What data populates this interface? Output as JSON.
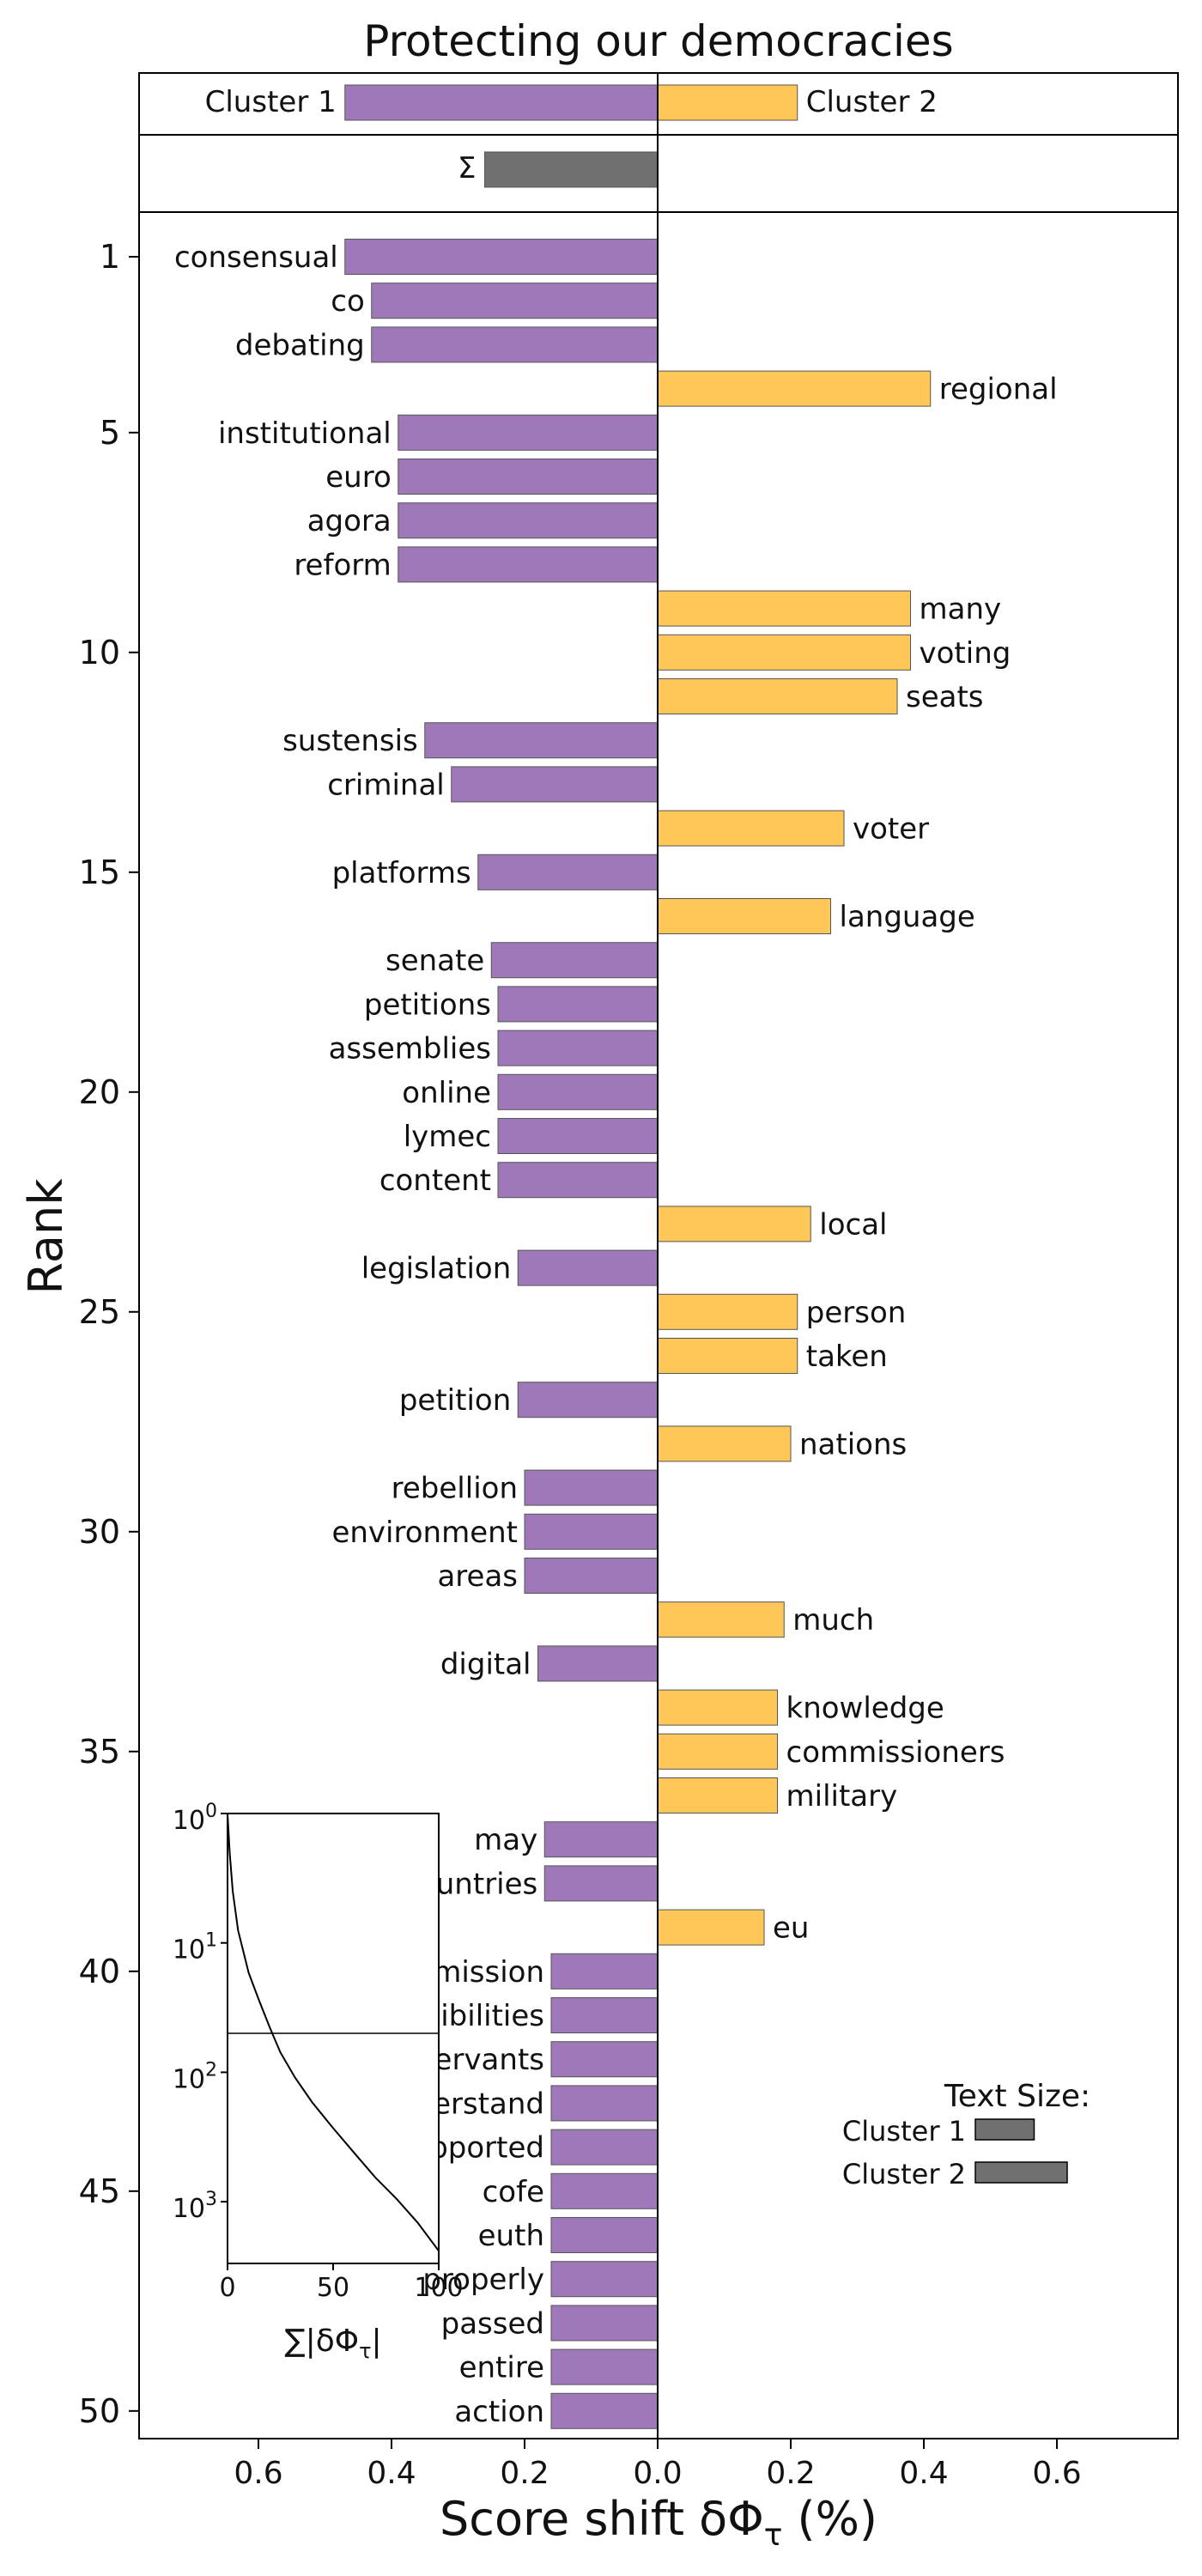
{
  "chart_data": {
    "type": "bar",
    "title": "Protecting our democracies",
    "xlabel": "Score shift δΦ_τ (%)",
    "ylabel": "Rank",
    "xlim": [
      -0.78,
      0.78
    ],
    "x_tick_values": [
      -0.6,
      -0.4,
      -0.2,
      0,
      0.2,
      0.4,
      0.6
    ],
    "x_tick_labels": [
      "0.6",
      "0.4",
      "0.2",
      "0.0",
      "0.2",
      "0.4",
      "0.6"
    ],
    "y_tick_values": [
      1,
      5,
      10,
      15,
      20,
      25,
      30,
      35,
      40,
      45,
      50
    ],
    "colors": {
      "cluster1": "#9E78B8",
      "cluster2": "#FFC757",
      "sum": "#707070"
    },
    "summary": {
      "cluster1_label": "Cluster 1",
      "cluster1_value": -0.47,
      "cluster2_label": "Cluster 2",
      "cluster2_value": 0.21,
      "sum_label": "Σ",
      "sum_value": -0.26
    },
    "words": [
      {
        "rank": 1,
        "word": "consensual",
        "value": -0.47
      },
      {
        "rank": 2,
        "word": "co",
        "value": -0.43
      },
      {
        "rank": 3,
        "word": "debating",
        "value": -0.43
      },
      {
        "rank": 4,
        "word": "regional",
        "value": 0.41
      },
      {
        "rank": 5,
        "word": "institutional",
        "value": -0.39
      },
      {
        "rank": 6,
        "word": "euro",
        "value": -0.39
      },
      {
        "rank": 7,
        "word": "agora",
        "value": -0.39
      },
      {
        "rank": 8,
        "word": "reform",
        "value": -0.39
      },
      {
        "rank": 9,
        "word": "many",
        "value": 0.38
      },
      {
        "rank": 10,
        "word": "voting",
        "value": 0.38
      },
      {
        "rank": 11,
        "word": "seats",
        "value": 0.36
      },
      {
        "rank": 12,
        "word": "sustensis",
        "value": -0.35
      },
      {
        "rank": 13,
        "word": "criminal",
        "value": -0.31
      },
      {
        "rank": 14,
        "word": "voter",
        "value": 0.28
      },
      {
        "rank": 15,
        "word": "platforms",
        "value": -0.27
      },
      {
        "rank": 16,
        "word": "language",
        "value": 0.26
      },
      {
        "rank": 17,
        "word": "senate",
        "value": -0.25
      },
      {
        "rank": 18,
        "word": "petitions",
        "value": -0.24
      },
      {
        "rank": 19,
        "word": "assemblies",
        "value": -0.24
      },
      {
        "rank": 20,
        "word": "online",
        "value": -0.24
      },
      {
        "rank": 21,
        "word": "lymec",
        "value": -0.24
      },
      {
        "rank": 22,
        "word": "content",
        "value": -0.24
      },
      {
        "rank": 23,
        "word": "local",
        "value": 0.23
      },
      {
        "rank": 24,
        "word": "legislation",
        "value": -0.21
      },
      {
        "rank": 25,
        "word": "person",
        "value": 0.21
      },
      {
        "rank": 26,
        "word": "taken",
        "value": 0.21
      },
      {
        "rank": 27,
        "word": "petition",
        "value": -0.21
      },
      {
        "rank": 28,
        "word": "nations",
        "value": 0.2
      },
      {
        "rank": 29,
        "word": "rebellion",
        "value": -0.2
      },
      {
        "rank": 30,
        "word": "environment",
        "value": -0.2
      },
      {
        "rank": 31,
        "word": "areas",
        "value": -0.2
      },
      {
        "rank": 32,
        "word": "much",
        "value": 0.19
      },
      {
        "rank": 33,
        "word": "digital",
        "value": -0.18
      },
      {
        "rank": 34,
        "word": "knowledge",
        "value": 0.18
      },
      {
        "rank": 35,
        "word": "commissioners",
        "value": 0.18
      },
      {
        "rank": 36,
        "word": "military",
        "value": 0.18
      },
      {
        "rank": 37,
        "word": "may",
        "value": -0.17
      },
      {
        "rank": 38,
        "word": "countries",
        "value": -0.17
      },
      {
        "rank": 39,
        "word": "eu",
        "value": 0.16
      },
      {
        "rank": 40,
        "word": "commission",
        "value": -0.16
      },
      {
        "rank": 41,
        "word": "responsibilities",
        "value": -0.16
      },
      {
        "rank": 42,
        "word": "servants",
        "value": -0.16
      },
      {
        "rank": 43,
        "word": "understand",
        "value": -0.16
      },
      {
        "rank": 44,
        "word": "supported",
        "value": -0.16
      },
      {
        "rank": 45,
        "word": "cofe",
        "value": -0.16
      },
      {
        "rank": 46,
        "word": "euth",
        "value": -0.16
      },
      {
        "rank": 47,
        "word": "properly",
        "value": -0.16
      },
      {
        "rank": 48,
        "word": "passed",
        "value": -0.16
      },
      {
        "rank": 49,
        "word": "entire",
        "value": -0.16
      },
      {
        "rank": 50,
        "word": "action",
        "value": -0.16
      }
    ],
    "text_size_legend": {
      "title": "Text Size:",
      "items": [
        {
          "label": "Cluster 1",
          "value": 0.64
        },
        {
          "label": "Cluster 2",
          "value": 1.0
        }
      ]
    },
    "inset": {
      "type": "line",
      "xlabel": "∑|δΦ_τ|",
      "x_ticks": [
        "0",
        "50",
        "100"
      ],
      "xlim": [
        0,
        100
      ],
      "y_scale": "log",
      "y_ticks": [
        "10^0",
        "10^1",
        "10^2",
        "10^3"
      ],
      "ylim": [
        1,
        3000
      ],
      "hline_rank": 50,
      "curve": [
        [
          0,
          1
        ],
        [
          1,
          2
        ],
        [
          2.5,
          4
        ],
        [
          5,
          8
        ],
        [
          10,
          17
        ],
        [
          15,
          28
        ],
        [
          20,
          45
        ],
        [
          25,
          70
        ],
        [
          32,
          110
        ],
        [
          40,
          170
        ],
        [
          50,
          270
        ],
        [
          60,
          420
        ],
        [
          70,
          650
        ],
        [
          80,
          950
        ],
        [
          90,
          1450
        ],
        [
          100,
          2400
        ]
      ]
    }
  }
}
